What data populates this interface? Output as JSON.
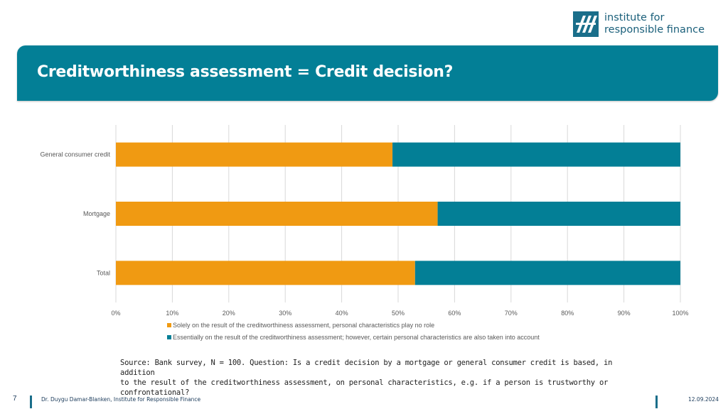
{
  "logo": {
    "line1": "institute for",
    "line2": "responsible finance",
    "icon": "iff-logo-icon"
  },
  "slide_title": "Creditworthiness assessment = Credit decision?",
  "chart_data": {
    "type": "bar",
    "orientation": "horizontal",
    "stacked": true,
    "percent": true,
    "categories": [
      "General consumer credit",
      "Mortgage",
      "Total"
    ],
    "series": [
      {
        "name": "Solely on the result of the creditworthiness assessment, personal characteristics play no role",
        "values": [
          49,
          57,
          53
        ],
        "color": "#f09a12"
      },
      {
        "name": "Essentially on the result of the creditworthiness assessment; however, certain personal characteristics are also taken into account",
        "values": [
          51,
          43,
          47
        ],
        "color": "#037f96"
      }
    ],
    "xlim": [
      0,
      100
    ],
    "xticks": [
      "0%",
      "10%",
      "20%",
      "30%",
      "40%",
      "50%",
      "60%",
      "70%",
      "80%",
      "90%",
      "100%"
    ],
    "grid": true,
    "legend_position": "bottom"
  },
  "source_line1": "Source: Bank survey, N = 100. Question: Is a credit decision by a mortgage or general consumer credit is based, in addition",
  "source_line2": "to the result of the creditworthiness assessment, on personal characteristics, e.g. if a person is trustworthy or confrontational?",
  "footer": {
    "page_number": "7",
    "author": "Dr. Duygu Damar-Blanken, Institute for Responsible Finance",
    "date": "12.09.2024"
  }
}
